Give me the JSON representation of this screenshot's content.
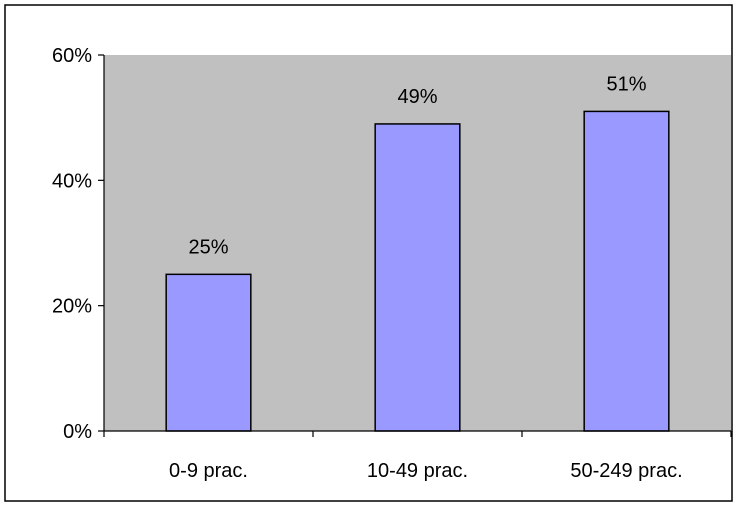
{
  "colors": {
    "plot_background": "#c0c0c0",
    "bar_fill": "#9999ff",
    "bar_stroke": "#000000",
    "axis": "#000000",
    "frame": "#000000"
  },
  "chart_data": {
    "type": "bar",
    "title": "",
    "xlabel": "",
    "ylabel": "",
    "categories": [
      "0-9 prac.",
      "10-49 prac.",
      "50-249 prac."
    ],
    "values": [
      25,
      49,
      51
    ],
    "value_labels": [
      "25%",
      "49%",
      "51%"
    ],
    "ylim": [
      0,
      60
    ],
    "yticks": [
      0,
      20,
      40,
      60
    ],
    "ytick_labels": [
      "0%",
      "20%",
      "40%",
      "60%"
    ],
    "grid": false,
    "legend": "none"
  }
}
